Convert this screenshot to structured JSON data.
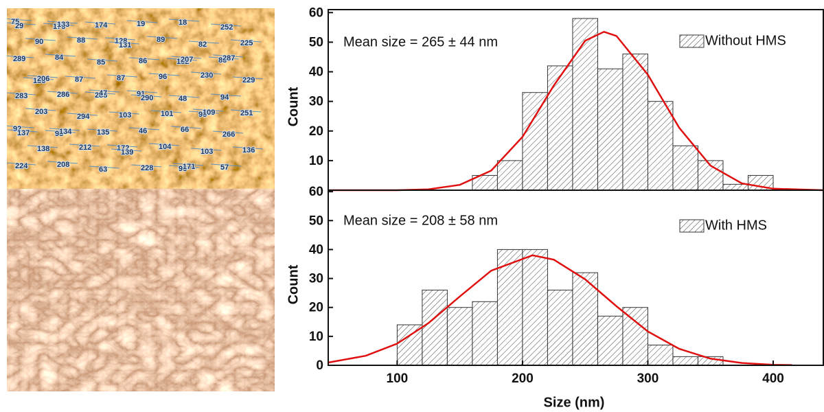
{
  "images": {
    "afm_labels": [
      "75",
      "173",
      "174",
      "19",
      "18",
      "252",
      "29",
      "133",
      "128",
      "89",
      "82",
      "225",
      "90",
      "88",
      "131",
      "132",
      "83",
      "289",
      "84",
      "85",
      "86",
      "207",
      "287",
      "130",
      "87",
      "87",
      "96",
      "230",
      "229",
      "206",
      "288",
      "91",
      "48",
      "94",
      "283",
      "286",
      "47",
      "290",
      "95",
      "251",
      "203",
      "294",
      "103",
      "101",
      "109",
      "92",
      "93",
      "135",
      "46",
      "66",
      "266",
      "137",
      "134",
      "172",
      "104",
      "103",
      "136",
      "138",
      "212",
      "139",
      "96",
      "57",
      "224",
      "208",
      "63",
      "228",
      "171"
    ]
  },
  "chart_data": [
    {
      "type": "histogram",
      "annotation": "Mean size = 265 ± 44 nm",
      "ylabel": "Count",
      "bins": [
        160,
        180,
        200,
        220,
        240,
        260,
        280,
        300,
        320,
        340,
        360,
        380,
        400
      ],
      "series": [
        {
          "name": "Without HMS",
          "color": "#333333",
          "values": [
            5,
            10,
            33,
            42,
            58,
            41,
            46,
            30,
            15,
            10,
            2,
            5
          ]
        }
      ],
      "fit": {
        "color": "#e01010",
        "x": [
          45,
          100,
          125,
          150,
          175,
          200,
          225,
          250,
          265,
          275,
          300,
          325,
          350,
          375,
          400,
          440
        ],
        "y": [
          0,
          0,
          0.3,
          1.8,
          6.6,
          18.0,
          35.4,
          50.5,
          53.5,
          52.1,
          39.0,
          21.1,
          8.3,
          2.3,
          0.5,
          0
        ]
      },
      "xlim": [
        45,
        440
      ],
      "ylim": [
        0,
        61
      ],
      "yticks": [
        10,
        20,
        30,
        40,
        50,
        60
      ]
    },
    {
      "type": "histogram",
      "annotation": "Mean size = 208 ± 58 nm",
      "ylabel": "Count",
      "xlabel": "Size (nm)",
      "bins": [
        100,
        120,
        140,
        160,
        180,
        200,
        220,
        240,
        260,
        280,
        300,
        320,
        340,
        360
      ],
      "series": [
        {
          "name": "With HMS",
          "color": "#333333",
          "values": [
            14,
            26,
            20,
            22,
            40,
            40,
            26,
            32,
            17,
            20,
            7,
            3,
            3
          ]
        }
      ],
      "fit": {
        "color": "#e01010",
        "x": [
          45,
          75,
          100,
          125,
          150,
          175,
          208,
          225,
          250,
          275,
          300,
          325,
          350,
          375,
          400,
          415
        ],
        "y": [
          0.95,
          3.3,
          7.5,
          14.6,
          23.8,
          32.7,
          38,
          36.5,
          29.7,
          20.4,
          11.7,
          5.7,
          2.3,
          0.8,
          0.2,
          0.1
        ]
      },
      "xlim": [
        45,
        440
      ],
      "ylim": [
        0,
        60.5
      ],
      "yticks": [
        0,
        10,
        20,
        30,
        40,
        50,
        60
      ],
      "xticks": [
        100,
        200,
        300,
        400
      ]
    }
  ]
}
